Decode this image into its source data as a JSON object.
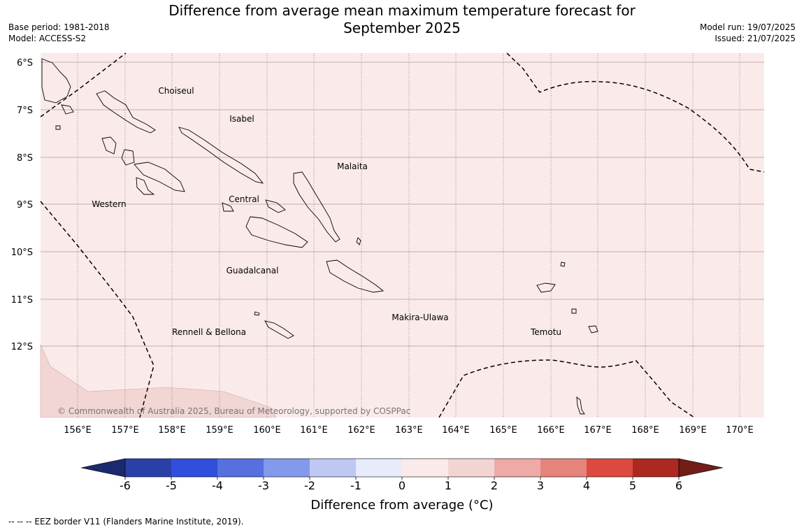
{
  "header": {
    "title_line1": "Difference from average mean maximum temperature forecast for",
    "title_line2": "September 2025",
    "base_period": "Base period: 1981-2018",
    "model": "Model: ACCESS-S2",
    "model_run": "Model run: 19/07/2025",
    "issued": "Issued: 21/07/2025"
  },
  "map": {
    "background_color": "#fbeaea",
    "lon_labels": [
      "156°E",
      "157°E",
      "158°E",
      "159°E",
      "160°E",
      "161°E",
      "162°E",
      "163°E",
      "164°E",
      "165°E",
      "166°E",
      "167°E",
      "168°E",
      "169°E",
      "170°E"
    ],
    "lat_labels": [
      "6°S",
      "7°S",
      "8°S",
      "9°S",
      "10°S",
      "11°S",
      "12°S"
    ],
    "regions": [
      "Choiseul",
      "Isabel",
      "Malaita",
      "Western",
      "Central",
      "Guadalcanal",
      "Makira-Ulawa",
      "Rennell & Bellona",
      "Temotu"
    ],
    "copyright": "© Commonwealth of Australia 2025, Bureau of Meteorology, supported by COSPPac"
  },
  "colorbar": {
    "title": "Difference from average (°C)",
    "ticks": [
      "-6",
      "-5",
      "-4",
      "-3",
      "-2",
      "-1",
      "0",
      "1",
      "2",
      "3",
      "4",
      "5",
      "6"
    ],
    "colors": {
      "below": "#1b2a6e",
      "bins": [
        "#2a40a8",
        "#2f4fdc",
        "#5670e0",
        "#8399ec",
        "#bfc8f3",
        "#e7ebfb",
        "#fbeaea",
        "#f2d5d3",
        "#eeaaa6",
        "#e5847a",
        "#dd493e",
        "#ac2820"
      ],
      "above": "#721d18"
    }
  },
  "legend_note": "--  --  -- EEZ border V11 (Flanders Marine Institute, 2019)."
}
